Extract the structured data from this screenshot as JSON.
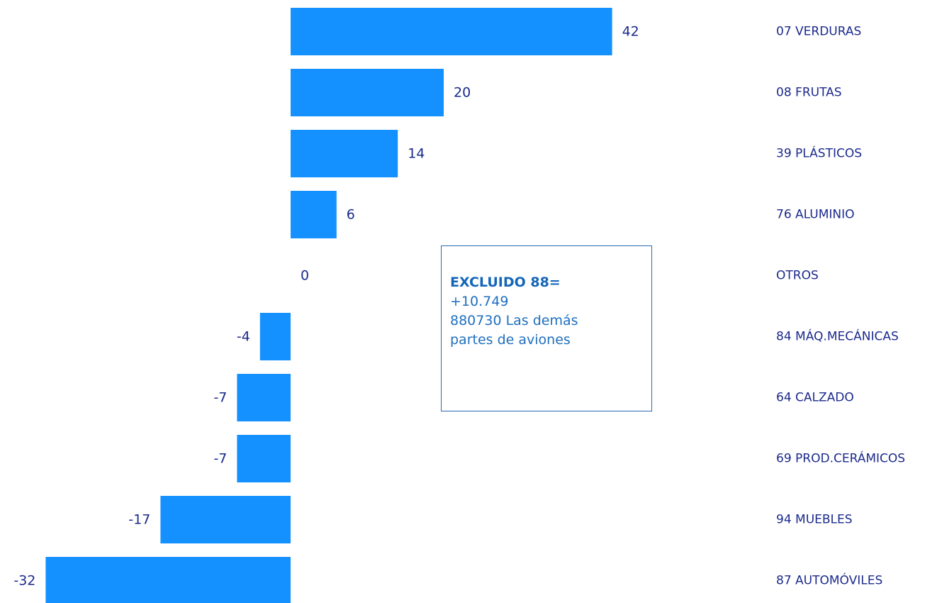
{
  "chart_data": {
    "type": "bar",
    "orientation": "horizontal",
    "categories": [
      "07 VERDURAS",
      "08 FRUTAS",
      "39 PLÁSTICOS",
      "76 ALUMINIO",
      "OTROS",
      "84 MÁQ.MECÁNICAS",
      "64 CALZADO",
      "69 PROD.CERÁMICOS",
      "94 MUEBLES",
      "87 AUTOMÓVILES"
    ],
    "values": [
      42,
      20,
      14,
      6,
      0,
      -4,
      -7,
      -7,
      -17,
      -32
    ],
    "value_labels": [
      "42",
      "20",
      "14",
      "6",
      "0",
      "-4",
      "-7",
      "-7",
      "-17",
      "-32"
    ],
    "bar_color": "#1490ff",
    "label_color": "#1b2a8c",
    "xlim": [
      -32,
      42
    ],
    "grid": false,
    "legend": "none"
  },
  "annotation": {
    "title": "EXCLUIDO  88=",
    "lines": [
      "+10.749",
      "880730 Las demás",
      "partes de aviones"
    ],
    "text_color": "#1f6fbf",
    "border_color": "#2a6bb0"
  }
}
